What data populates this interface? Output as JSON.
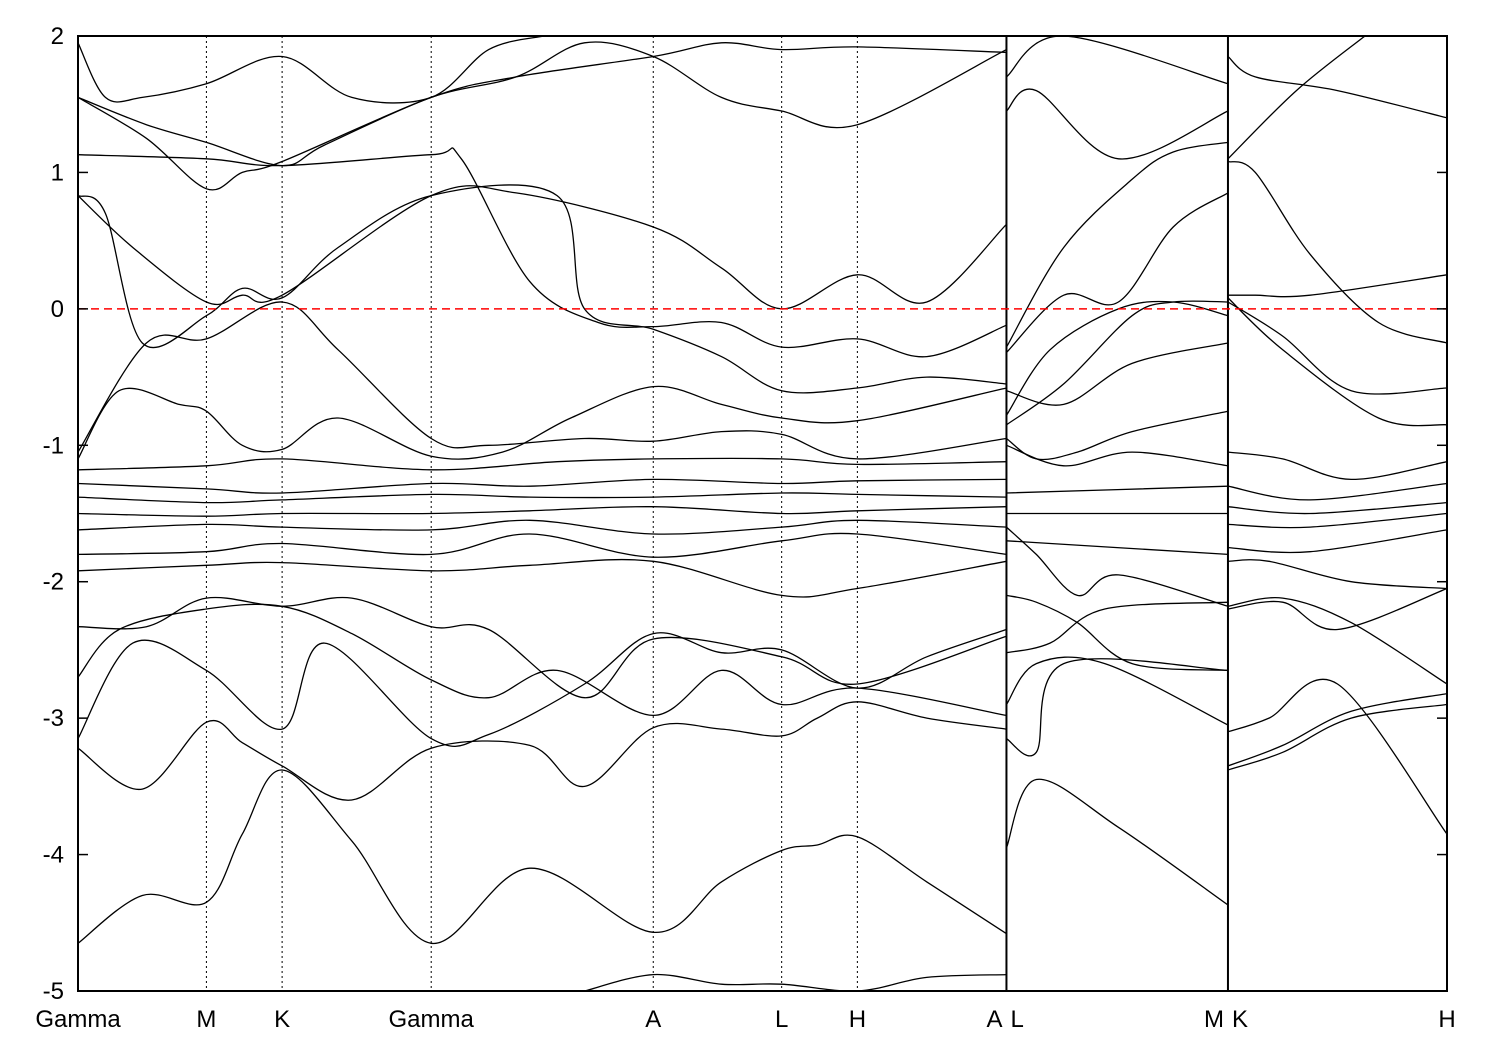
{
  "chart_data": {
    "type": "line",
    "title": "",
    "xlabel": "",
    "ylabel": "",
    "ylim": [
      -5,
      2
    ],
    "yticks": [
      -5,
      -4,
      -3,
      -2,
      -1,
      0,
      1,
      2
    ],
    "xlim": [
      0,
      1
    ],
    "grid": false,
    "fermi_level": {
      "value": 0,
      "color": "#ff0000",
      "style": "dashed"
    },
    "band_color": "#000000",
    "kpoints": [
      {
        "label": "Gamma",
        "x": 0.0
      },
      {
        "label": "M",
        "x": 0.0938
      },
      {
        "label": "K",
        "x": 0.1491
      },
      {
        "label": "Gamma",
        "x": 0.258
      },
      {
        "label": "A",
        "x": 0.4202
      },
      {
        "label": "L",
        "x": 0.514
      },
      {
        "label": "H",
        "x": 0.5693
      },
      {
        "label": "A",
        "x": 0.6782,
        "segment_break": true
      },
      {
        "label": "L",
        "x": 0.6782
      },
      {
        "label": "M",
        "x": 0.84,
        "segment_break": true
      },
      {
        "label": "K",
        "x": 0.84
      },
      {
        "label": "H",
        "x": 1.0
      }
    ],
    "tick_labels": [
      "Gamma",
      "M",
      "K",
      "Gamma",
      "A",
      "L",
      "H",
      "A",
      "L",
      "M",
      "K",
      "H"
    ],
    "segments": [
      {
        "from": "Gamma",
        "to": "M",
        "x0": 0.0,
        "x1": 0.0938
      },
      {
        "from": "M",
        "to": "K",
        "x0": 0.0938,
        "x1": 0.1491
      },
      {
        "from": "K",
        "to": "Gamma",
        "x0": 0.1491,
        "x1": 0.258
      },
      {
        "from": "Gamma",
        "to": "A",
        "x0": 0.258,
        "x1": 0.4202
      },
      {
        "from": "A",
        "to": "L",
        "x0": 0.4202,
        "x1": 0.514
      },
      {
        "from": "L",
        "to": "H",
        "x0": 0.514,
        "x1": 0.5693
      },
      {
        "from": "H",
        "to": "A",
        "x0": 0.5693,
        "x1": 0.6782
      },
      {
        "from": "L",
        "to": "M",
        "x0": 0.6782,
        "x1": 0.84
      },
      {
        "from": "K",
        "to": "H",
        "x0": 0.84,
        "x1": 1.0
      }
    ],
    "series": [
      {
        "x": [
          0,
          0.047,
          0.0938,
          0.12,
          0.1491,
          0.2,
          0.258,
          0.33,
          0.4202,
          0.47,
          0.514,
          0.54,
          0.5693,
          0.62,
          0.6782
        ],
        "values": [
          -4.65,
          -4.3,
          -4.35,
          -3.85,
          -3.38,
          -3.9,
          -4.65,
          -4.1,
          -4.57,
          -4.2,
          -3.97,
          -3.93,
          -3.87,
          -4.2,
          -4.58
        ]
      },
      {
        "x": [
          0,
          0.047,
          0.0938,
          0.12,
          0.1491,
          0.2,
          0.258,
          0.33,
          0.37,
          0.4202,
          0.47,
          0.514,
          0.54,
          0.5693,
          0.62,
          0.6782
        ],
        "values": [
          -3.22,
          -3.52,
          -3.03,
          -3.18,
          -3.35,
          -3.6,
          -3.22,
          -3.2,
          -3.5,
          -3.07,
          -3.08,
          -3.13,
          -3.0,
          -2.88,
          -3.0,
          -3.08
        ]
      },
      {
        "x": [
          0,
          0.04,
          0.0938,
          0.1491,
          0.18,
          0.258,
          0.3,
          0.37,
          0.4202,
          0.47,
          0.514,
          0.5693,
          0.62,
          0.6782
        ],
        "values": [
          -3.15,
          -2.45,
          -2.65,
          -3.08,
          -2.45,
          -3.15,
          -3.12,
          -2.75,
          -2.38,
          -2.52,
          -2.5,
          -2.78,
          -2.55,
          -2.35
        ]
      },
      {
        "x": [
          0,
          0.03,
          0.0938,
          0.1491,
          0.2,
          0.258,
          0.3,
          0.35,
          0.4202,
          0.47,
          0.514,
          0.5693,
          0.6782
        ],
        "values": [
          -2.7,
          -2.35,
          -2.2,
          -2.18,
          -2.38,
          -2.72,
          -2.85,
          -2.65,
          -2.98,
          -2.65,
          -2.9,
          -2.78,
          -2.98
        ]
      },
      {
        "x": [
          0,
          0.05,
          0.0938,
          0.1491,
          0.2,
          0.258,
          0.3,
          0.37,
          0.4202,
          0.514,
          0.5693,
          0.6782
        ],
        "values": [
          -2.33,
          -2.33,
          -2.12,
          -2.18,
          -2.12,
          -2.33,
          -2.35,
          -2.85,
          -2.42,
          -2.55,
          -2.75,
          -2.4
        ]
      },
      {
        "x": [
          0,
          0.0938,
          0.1491,
          0.258,
          0.33,
          0.4202,
          0.514,
          0.5693,
          0.6782
        ],
        "values": [
          -1.92,
          -1.88,
          -1.86,
          -1.92,
          -1.88,
          -1.85,
          -2.1,
          -2.05,
          -1.85
        ]
      },
      {
        "x": [
          0,
          0.0938,
          0.1491,
          0.258,
          0.33,
          0.4202,
          0.514,
          0.5693,
          0.6782
        ],
        "values": [
          -1.8,
          -1.78,
          -1.72,
          -1.8,
          -1.65,
          -1.82,
          -1.7,
          -1.65,
          -1.8
        ]
      },
      {
        "x": [
          0,
          0.0938,
          0.1491,
          0.258,
          0.33,
          0.4202,
          0.514,
          0.5693,
          0.6782
        ],
        "values": [
          -1.62,
          -1.58,
          -1.6,
          -1.62,
          -1.55,
          -1.65,
          -1.6,
          -1.55,
          -1.6
        ]
      },
      {
        "x": [
          0,
          0.0938,
          0.1491,
          0.258,
          0.33,
          0.4202,
          0.514,
          0.5693,
          0.6782
        ],
        "values": [
          -1.5,
          -1.52,
          -1.5,
          -1.5,
          -1.48,
          -1.45,
          -1.5,
          -1.48,
          -1.45
        ]
      },
      {
        "x": [
          0,
          0.0938,
          0.1491,
          0.258,
          0.33,
          0.4202,
          0.514,
          0.5693,
          0.6782
        ],
        "values": [
          -1.38,
          -1.42,
          -1.4,
          -1.36,
          -1.38,
          -1.38,
          -1.35,
          -1.36,
          -1.38
        ]
      },
      {
        "x": [
          0,
          0.0938,
          0.1491,
          0.258,
          0.33,
          0.4202,
          0.514,
          0.5693,
          0.6782
        ],
        "values": [
          -1.28,
          -1.32,
          -1.35,
          -1.28,
          -1.3,
          -1.25,
          -1.28,
          -1.26,
          -1.25
        ]
      },
      {
        "x": [
          0,
          0.0938,
          0.1491,
          0.258,
          0.35,
          0.4202,
          0.514,
          0.5693,
          0.6782
        ],
        "values": [
          -1.18,
          -1.15,
          -1.1,
          -1.18,
          -1.12,
          -1.1,
          -1.1,
          -1.14,
          -1.12
        ]
      },
      {
        "x": [
          0,
          0.03,
          0.0738,
          0.0938,
          0.12,
          0.1491,
          0.19,
          0.258,
          0.31,
          0.36,
          0.4202,
          0.47,
          0.514,
          0.5693,
          0.6782
        ],
        "values": [
          -1.1,
          -0.6,
          -0.7,
          -0.75,
          -1.0,
          -1.03,
          -0.8,
          -1.08,
          -1.05,
          -0.8,
          -0.57,
          -0.7,
          -0.8,
          -0.82,
          -0.58
        ]
      },
      {
        "x": [
          0,
          0.05,
          0.0938,
          0.1491,
          0.19,
          0.258,
          0.3,
          0.37,
          0.4202,
          0.47,
          0.514,
          0.5693,
          0.6782
        ],
        "values": [
          -1.05,
          -0.25,
          -0.22,
          0.05,
          -0.3,
          -0.95,
          -1.0,
          -0.95,
          -0.97,
          -0.9,
          -0.92,
          -1.1,
          -0.95
        ]
      },
      {
        "x": [
          0,
          0.02,
          0.047,
          0.0938,
          0.12,
          0.1491,
          0.19,
          0.258,
          0.35,
          0.37,
          0.4202,
          0.47,
          0.514,
          0.5693,
          0.62,
          0.6782
        ],
        "values": [
          0.83,
          0.7,
          -0.25,
          -0.05,
          0.15,
          0.08,
          0.45,
          0.83,
          0.83,
          0.0,
          -0.15,
          -0.35,
          -0.6,
          -0.58,
          -0.5,
          -0.55
        ]
      },
      {
        "x": [
          0,
          0.04,
          0.0938,
          0.12,
          0.1491,
          0.258,
          0.32,
          0.4202,
          0.47,
          0.514,
          0.5693,
          0.62,
          0.6782
        ],
        "values": [
          0.83,
          0.45,
          0.05,
          0.1,
          0.1,
          0.83,
          0.85,
          0.6,
          0.3,
          0.0,
          0.25,
          0.05,
          0.62
        ]
      },
      {
        "x": [
          0,
          0.0938,
          0.1491,
          0.258,
          0.28,
          0.33,
          0.38,
          0.4202,
          0.47,
          0.514,
          0.5693,
          0.62,
          0.6782
        ],
        "values": [
          1.13,
          1.1,
          1.05,
          1.13,
          1.1,
          0.2,
          -0.1,
          -0.13,
          -0.1,
          -0.28,
          -0.22,
          -0.35,
          -0.12
        ]
      },
      {
        "x": [
          0,
          0.05,
          0.0938,
          0.12,
          0.1491,
          0.258,
          0.32,
          0.4202,
          0.47,
          0.514,
          0.5693,
          0.6782
        ],
        "values": [
          1.55,
          1.25,
          0.88,
          1.0,
          1.08,
          1.55,
          1.7,
          1.85,
          1.95,
          1.9,
          1.92,
          1.88
        ]
      },
      {
        "x": [
          0,
          0.05,
          0.0938,
          0.1491,
          0.18,
          0.258,
          0.32,
          0.37,
          0.4202,
          0.47,
          0.514,
          0.5693,
          0.6782
        ],
        "values": [
          1.55,
          1.35,
          1.22,
          1.05,
          1.2,
          1.55,
          1.7,
          1.95,
          1.85,
          1.55,
          1.45,
          1.35,
          1.9
        ]
      },
      {
        "x": [
          0,
          0.02,
          0.047,
          0.0938,
          0.1491,
          0.2,
          0.258,
          0.3,
          0.34
        ],
        "values": [
          1.95,
          1.55,
          1.55,
          1.65,
          1.85,
          1.55,
          1.55,
          1.9,
          2.0
        ]
      },
      {
        "x": [
          0.6782,
          0.72,
          0.76,
          0.8,
          0.84
        ],
        "values": [
          -0.32,
          0.1,
          0.05,
          0.6,
          0.85
        ]
      },
      {
        "x": [
          0.6782,
          0.72,
          0.77,
          0.8,
          0.84
        ],
        "values": [
          -0.28,
          0.45,
          0.95,
          1.15,
          1.22
        ]
      },
      {
        "x": [
          0.6782,
          0.71,
          0.76,
          0.8,
          0.84
        ],
        "values": [
          -0.78,
          -0.3,
          0.0,
          0.05,
          -0.05
        ]
      },
      {
        "x": [
          0.6782,
          0.72,
          0.77,
          0.8,
          0.84
        ],
        "values": [
          -0.85,
          -0.55,
          -0.05,
          0.05,
          0.05
        ]
      },
      {
        "x": [
          0.6782,
          0.72,
          0.77,
          0.84
        ],
        "values": [
          -0.6,
          -0.7,
          -0.4,
          -0.25
        ]
      },
      {
        "x": [
          0.6782,
          0.7,
          0.73,
          0.77,
          0.84
        ],
        "values": [
          -0.95,
          -1.1,
          -1.05,
          -0.9,
          -0.75
        ]
      },
      {
        "x": [
          0.6782,
          0.72,
          0.77,
          0.84
        ],
        "values": [
          -1.0,
          -1.15,
          -1.05,
          -1.15
        ]
      },
      {
        "x": [
          0.6782,
          0.7,
          0.73,
          0.76,
          0.84
        ],
        "values": [
          -1.6,
          -1.8,
          -2.1,
          -1.95,
          -2.18
        ]
      },
      {
        "x": [
          0.6782,
          0.7,
          0.73,
          0.77,
          0.84
        ],
        "values": [
          -2.1,
          -2.15,
          -2.3,
          -2.6,
          -2.65
        ]
      },
      {
        "x": [
          0.6782,
          0.71,
          0.75,
          0.84
        ],
        "values": [
          -2.52,
          -2.45,
          -2.2,
          -2.15
        ]
      },
      {
        "x": [
          0.6782,
          0.7,
          0.75,
          0.84
        ],
        "values": [
          -2.9,
          -2.6,
          -2.6,
          -3.05
        ]
      },
      {
        "x": [
          0.6782,
          0.7,
          0.72,
          0.84
        ],
        "values": [
          -3.15,
          -3.25,
          -2.6,
          -2.65
        ]
      },
      {
        "x": [
          0.6782,
          0.7,
          0.76,
          0.84
        ],
        "values": [
          -3.95,
          -3.45,
          -3.8,
          -4.37
        ]
      },
      {
        "x": [
          0.6782,
          0.7,
          0.76,
          0.84
        ],
        "values": [
          1.45,
          1.6,
          1.1,
          1.45
        ]
      },
      {
        "x": [
          0.6782,
          0.72,
          0.84
        ],
        "values": [
          1.7,
          2.0,
          1.65
        ]
      },
      {
        "x": [
          0.6782,
          0.84
        ],
        "values": [
          -1.35,
          -1.3
        ]
      },
      {
        "x": [
          0.6782,
          0.84
        ],
        "values": [
          -1.5,
          -1.5
        ]
      },
      {
        "x": [
          0.6782,
          0.84
        ],
        "values": [
          -1.7,
          -1.8
        ]
      },
      {
        "x": [
          0.84,
          0.86,
          0.92,
          1.0
        ],
        "values": [
          1.85,
          1.7,
          1.6,
          1.4
        ]
      },
      {
        "x": [
          0.84,
          0.89,
          0.94
        ],
        "values": [
          1.1,
          1.6,
          2.0
        ]
      },
      {
        "x": [
          0.84,
          0.86,
          0.9,
          0.95,
          1.0
        ],
        "values": [
          1.08,
          1.0,
          0.4,
          -0.1,
          -0.25
        ]
      },
      {
        "x": [
          0.84,
          0.86,
          0.9,
          1.0
        ],
        "values": [
          0.1,
          0.1,
          0.1,
          0.25
        ]
      },
      {
        "x": [
          0.84,
          0.88,
          0.93,
          1.0
        ],
        "values": [
          0.05,
          -0.2,
          -0.6,
          -0.58
        ]
      },
      {
        "x": [
          0.84,
          0.88,
          0.95,
          1.0
        ],
        "values": [
          0.08,
          -0.3,
          -0.8,
          -0.85
        ]
      },
      {
        "x": [
          0.84,
          0.88,
          0.93,
          1.0
        ],
        "values": [
          -1.05,
          -1.1,
          -1.25,
          -1.12
        ]
      },
      {
        "x": [
          0.84,
          0.9,
          1.0
        ],
        "values": [
          -1.3,
          -1.4,
          -1.28
        ]
      },
      {
        "x": [
          0.84,
          0.9,
          1.0
        ],
        "values": [
          -1.45,
          -1.5,
          -1.42
        ]
      },
      {
        "x": [
          0.84,
          0.9,
          1.0
        ],
        "values": [
          -1.58,
          -1.6,
          -1.5
        ]
      },
      {
        "x": [
          0.84,
          0.9,
          1.0
        ],
        "values": [
          -1.75,
          -1.78,
          -1.62
        ]
      },
      {
        "x": [
          0.84,
          0.87,
          0.93,
          1.0
        ],
        "values": [
          -1.85,
          -1.85,
          -2.0,
          -2.05
        ]
      },
      {
        "x": [
          0.84,
          0.88,
          0.93,
          1.0
        ],
        "values": [
          -2.18,
          -2.12,
          -2.3,
          -2.75
        ]
      },
      {
        "x": [
          0.84,
          0.88,
          0.92,
          1.0
        ],
        "values": [
          -2.2,
          -2.15,
          -2.35,
          -2.05
        ]
      },
      {
        "x": [
          0.84,
          0.87,
          0.92,
          1.0
        ],
        "values": [
          -3.1,
          -3.0,
          -2.75,
          -3.85
        ]
      },
      {
        "x": [
          0.84,
          0.88,
          0.93,
          1.0
        ],
        "values": [
          -3.38,
          -3.25,
          -3.0,
          -2.9
        ]
      },
      {
        "x": [
          0.84,
          0.88,
          0.93,
          1.0
        ],
        "values": [
          -3.35,
          -3.2,
          -2.95,
          -2.82
        ]
      },
      {
        "x": [
          0.37,
          0.4202,
          0.47,
          0.514,
          0.5693,
          0.62,
          0.6782
        ],
        "values": [
          -5.0,
          -4.88,
          -4.95,
          -4.95,
          -5.0,
          -4.9,
          -4.88
        ]
      }
    ]
  }
}
